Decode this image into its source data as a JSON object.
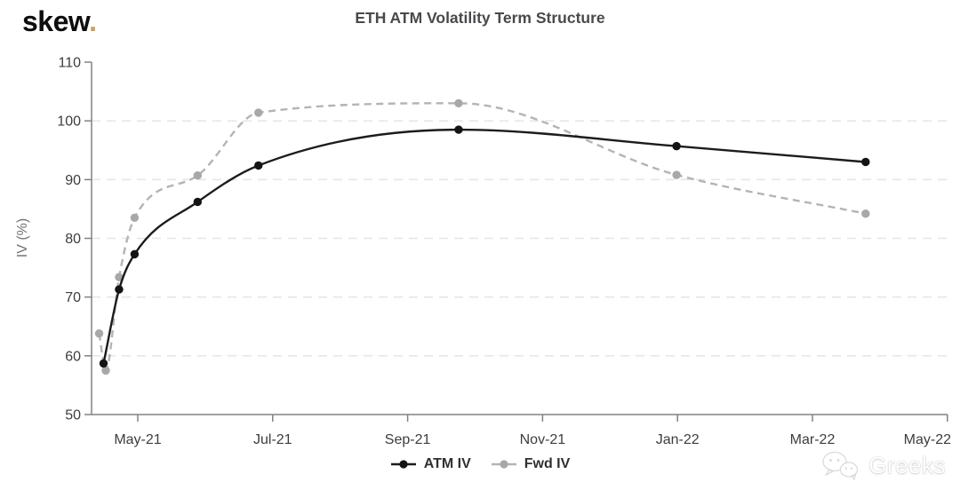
{
  "brand": {
    "name": "skew",
    "dot": "."
  },
  "watermark": {
    "text": "Greeks",
    "icon": "wechat-icon"
  },
  "colors": {
    "accent_gold": "#c9a05e",
    "axis": "#828282",
    "grid": "#e6e6e6",
    "tick_text": "#3d3d3d",
    "title_text": "#474a4d",
    "ylabel_text": "#737373",
    "legend_text": "#303030",
    "watermark_text": "#ffffff"
  },
  "chart_data": {
    "type": "line",
    "title": "ETH ATM Volatility Term Structure",
    "xlabel": "",
    "ylabel": "IV (%)",
    "ylim": [
      50,
      110
    ],
    "y_ticks": [
      50,
      60,
      70,
      80,
      90,
      100,
      110
    ],
    "grid": "horizontal dashed gridlines at 60,70,80,90,100",
    "legend_position": "bottom-center",
    "x_axis_range": [
      "2021-04-10",
      "2022-05-04"
    ],
    "x_ticks": [
      {
        "date": "2021-05-01",
        "label": "May-21"
      },
      {
        "date": "2021-07-01",
        "label": "Jul-21"
      },
      {
        "date": "2021-09-01",
        "label": "Sep-21"
      },
      {
        "date": "2021-11-01",
        "label": "Nov-21"
      },
      {
        "date": "2022-01-01",
        "label": "Jan-22"
      },
      {
        "date": "2022-03-01",
        "label": "Mar-22"
      },
      {
        "date": "2022-05-01",
        "label": "May-22"
      }
    ],
    "series": [
      {
        "name": "ATM IV",
        "line_style": "solid",
        "color": "#1c1c1c",
        "marker": "circle",
        "marker_color": "#141414",
        "points": [
          {
            "date": "2021-04-16",
            "iv": 58.7
          },
          {
            "date": "2021-04-23",
            "iv": 71.3
          },
          {
            "date": "2021-04-30",
            "iv": 77.3
          },
          {
            "date": "2021-05-28",
            "iv": 86.2
          },
          {
            "date": "2021-06-25",
            "iv": 92.4
          },
          {
            "date": "2021-09-24",
            "iv": 98.5
          },
          {
            "date": "2021-12-31",
            "iv": 95.7
          },
          {
            "date": "2022-03-25",
            "iv": 93.0
          }
        ]
      },
      {
        "name": "Fwd IV",
        "line_style": "dashed",
        "color": "#b4b4b4",
        "marker": "circle",
        "marker_color": "#a8a8a8",
        "points": [
          {
            "date": "2021-04-14",
            "iv": 63.8
          },
          {
            "date": "2021-04-17",
            "iv": 57.5
          },
          {
            "date": "2021-04-23",
            "iv": 73.4
          },
          {
            "date": "2021-04-30",
            "iv": 83.5
          },
          {
            "date": "2021-05-28",
            "iv": 90.7
          },
          {
            "date": "2021-06-25",
            "iv": 101.4
          },
          {
            "date": "2021-09-24",
            "iv": 103.0
          },
          {
            "date": "2021-12-31",
            "iv": 90.8
          },
          {
            "date": "2022-03-25",
            "iv": 84.2
          }
        ]
      }
    ]
  }
}
